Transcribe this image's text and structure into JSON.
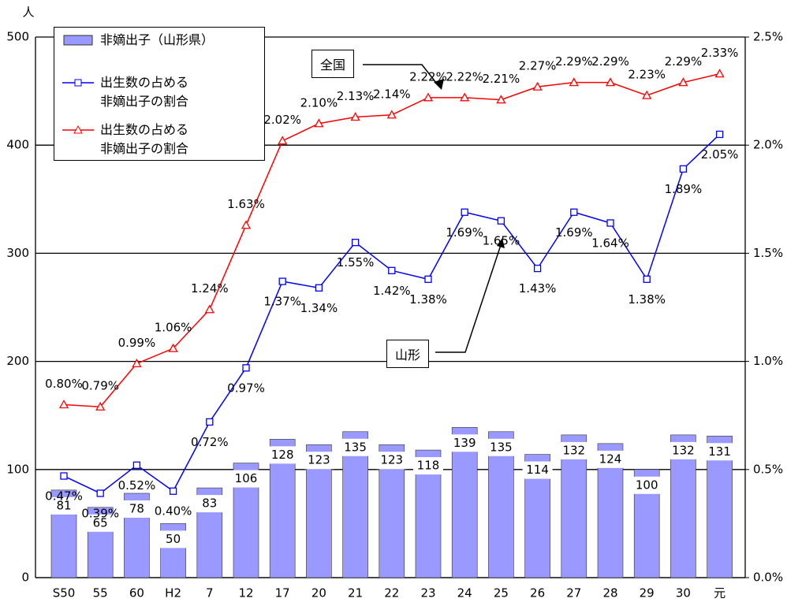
{
  "chart_data": {
    "type": "bar-line",
    "y_unit": "人",
    "categories": [
      "S50",
      "55",
      "60",
      "H2",
      "7",
      "12",
      "17",
      "20",
      "21",
      "22",
      "23",
      "24",
      "25",
      "26",
      "27",
      "28",
      "29",
      "30",
      "元"
    ],
    "ylim": [
      0,
      500
    ],
    "yticks": [
      0,
      100,
      200,
      300,
      400,
      500
    ],
    "y2lim": [
      0,
      2.5
    ],
    "y2ticks": [
      {
        "value": 0,
        "label": "0.0%"
      },
      {
        "value": 0.5,
        "label": "0.5%"
      },
      {
        "value": 1,
        "label": "1.0%"
      },
      {
        "value": 1.5,
        "label": "1.5%"
      },
      {
        "value": 2,
        "label": "2.0%"
      },
      {
        "value": 2.5,
        "label": "2.5%"
      }
    ],
    "grid": true,
    "series": [
      {
        "name": "非嫡出子（山形県）",
        "type": "bar",
        "color": "#9999ff",
        "values": [
          81,
          65,
          78,
          50,
          83,
          106,
          128,
          123,
          135,
          123,
          118,
          139,
          135,
          114,
          132,
          124,
          100,
          132,
          131
        ]
      },
      {
        "name": "出生数の占める\n非嫡出子の割合",
        "type": "line",
        "axis": "y2",
        "color": "#0000ff",
        "marker": "square",
        "values": [
          0.47,
          0.39,
          0.52,
          0.4,
          0.72,
          0.97,
          1.37,
          1.34,
          1.55,
          1.42,
          1.38,
          1.69,
          1.65,
          1.43,
          1.69,
          1.64,
          1.38,
          1.89,
          2.05
        ],
        "value_labels": [
          "0.47%",
          "0.39%",
          "0.52%",
          "0.40%",
          "0.72%",
          "0.97%",
          "1.37%",
          "1.34%",
          "1.55%",
          "1.42%",
          "1.38%",
          "1.69%",
          "1.65%",
          "1.43%",
          "1.69%",
          "1.64%",
          "1.38%",
          "1.89%",
          "2.05%"
        ]
      },
      {
        "name": "出生数の占める\n非嫡出子の割合",
        "type": "line",
        "axis": "y2",
        "color": "#ff0000",
        "marker": "triangle",
        "values": [
          0.8,
          0.79,
          0.99,
          1.06,
          1.24,
          1.63,
          2.02,
          2.1,
          2.13,
          2.14,
          2.22,
          2.22,
          2.21,
          2.27,
          2.29,
          2.29,
          2.23,
          2.29,
          2.33
        ],
        "value_labels": [
          "0.80%",
          "0.79%",
          "0.99%",
          "1.06%",
          "1.24%",
          "1.63%",
          "2.02%",
          "2.10%",
          "2.13%",
          "2.14%",
          "2.22%",
          "2.22%",
          "2.21%",
          "2.27%",
          "2.29%",
          "2.29%",
          "2.23%",
          "2.29%",
          "2.33%"
        ]
      }
    ],
    "annotations": [
      "全国",
      "山形"
    ]
  }
}
